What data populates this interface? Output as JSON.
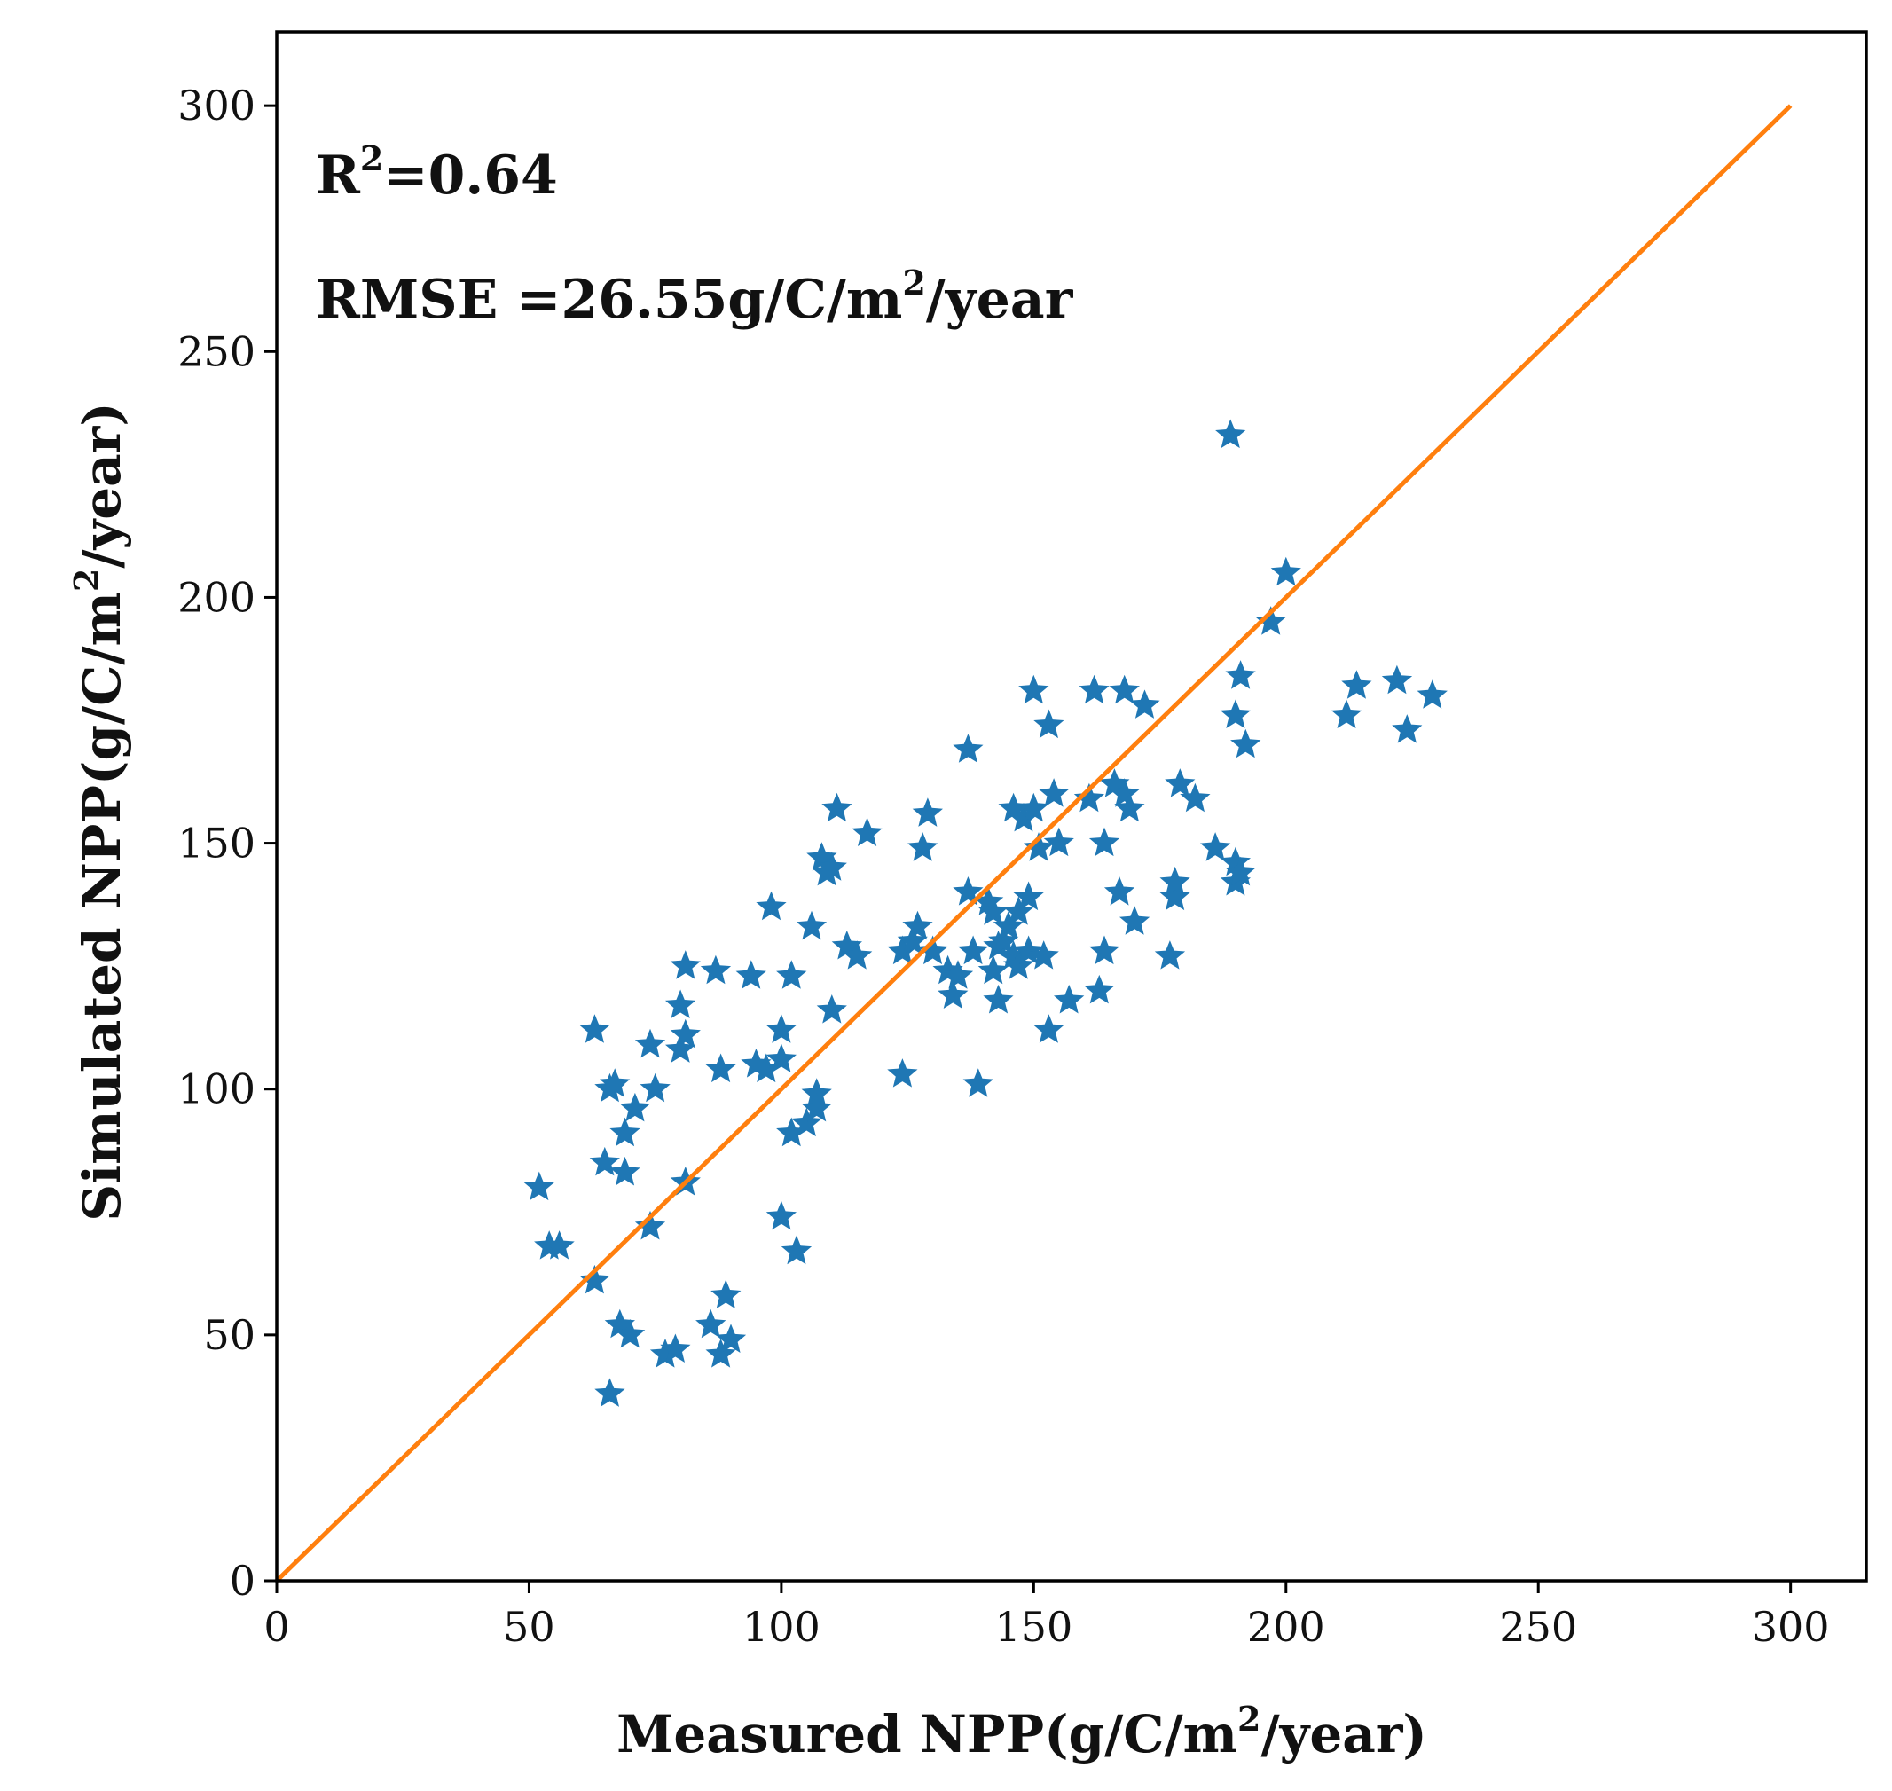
{
  "chart_data": {
    "type": "scatter",
    "title": "",
    "xlabel": {
      "pre": "Measured NPP(g/C/m",
      "sup": "2",
      "post": "/year)"
    },
    "ylabel": {
      "pre": "Simulated NPP(g/C/m",
      "sup": "2",
      "post": "/year)"
    },
    "xlim": [
      0,
      315
    ],
    "ylim": [
      0,
      315
    ],
    "xticks": [
      0,
      50,
      100,
      150,
      200,
      250,
      300
    ],
    "yticks": [
      0,
      50,
      100,
      150,
      200,
      250,
      300
    ],
    "xtick_labels": [
      "0",
      "50",
      "100",
      "150",
      "200",
      "250",
      "300"
    ],
    "ytick_labels": [
      "0",
      "50",
      "100",
      "150",
      "200",
      "250",
      "300"
    ],
    "grid": false,
    "annotations": {
      "r2": {
        "pre": "R",
        "sup": "2",
        "post": "=0.64"
      },
      "rmse": {
        "pre": "RMSE =26.55g/C/m",
        "sup": "2",
        "post": "/year"
      }
    },
    "colors": {
      "points": "#1f77b4",
      "line": "#ff7f0e",
      "axes": "#000000"
    },
    "marker": "star",
    "line": {
      "name": "1:1 line",
      "x": [
        0,
        300
      ],
      "y": [
        0,
        300
      ]
    },
    "points": [
      [
        52,
        80
      ],
      [
        54,
        68
      ],
      [
        56,
        68
      ],
      [
        63,
        112
      ],
      [
        63,
        61
      ],
      [
        65,
        85
      ],
      [
        66,
        100
      ],
      [
        66,
        38
      ],
      [
        67,
        101
      ],
      [
        68,
        52
      ],
      [
        69,
        91
      ],
      [
        69,
        83
      ],
      [
        70,
        50
      ],
      [
        71,
        96
      ],
      [
        74,
        109
      ],
      [
        74,
        72
      ],
      [
        75,
        100
      ],
      [
        77,
        46
      ],
      [
        79,
        47
      ],
      [
        80,
        108
      ],
      [
        80,
        117
      ],
      [
        81,
        125
      ],
      [
        81,
        111
      ],
      [
        81,
        81
      ],
      [
        86,
        52
      ],
      [
        87,
        124
      ],
      [
        88,
        104
      ],
      [
        88,
        46
      ],
      [
        89,
        58
      ],
      [
        90,
        49
      ],
      [
        94,
        123
      ],
      [
        95,
        105
      ],
      [
        97,
        104
      ],
      [
        98,
        137
      ],
      [
        100,
        112
      ],
      [
        100,
        106
      ],
      [
        100,
        74
      ],
      [
        102,
        123
      ],
      [
        102,
        91
      ],
      [
        103,
        67
      ],
      [
        105,
        93
      ],
      [
        106,
        133
      ],
      [
        107,
        99
      ],
      [
        107,
        96
      ],
      [
        108,
        147
      ],
      [
        109,
        144
      ],
      [
        110,
        116
      ],
      [
        110,
        145
      ],
      [
        111,
        157
      ],
      [
        113,
        129
      ],
      [
        115,
        127
      ],
      [
        117,
        152
      ],
      [
        124,
        103
      ],
      [
        124,
        128
      ],
      [
        126,
        130
      ],
      [
        127,
        133
      ],
      [
        128,
        149
      ],
      [
        129,
        156
      ],
      [
        130,
        128
      ],
      [
        133,
        124
      ],
      [
        134,
        119
      ],
      [
        135,
        123
      ],
      [
        137,
        140
      ],
      [
        137,
        169
      ],
      [
        138,
        128
      ],
      [
        139,
        101
      ],
      [
        141,
        138
      ],
      [
        142,
        136
      ],
      [
        142,
        124
      ],
      [
        143,
        129
      ],
      [
        143,
        118
      ],
      [
        144,
        130
      ],
      [
        145,
        133
      ],
      [
        146,
        157
      ],
      [
        146,
        127
      ],
      [
        147,
        125
      ],
      [
        147,
        136
      ],
      [
        148,
        155
      ],
      [
        149,
        139
      ],
      [
        149,
        128
      ],
      [
        150,
        157
      ],
      [
        150,
        181
      ],
      [
        151,
        149
      ],
      [
        152,
        127
      ],
      [
        153,
        174
      ],
      [
        153,
        112
      ],
      [
        154,
        160
      ],
      [
        155,
        150
      ],
      [
        157,
        118
      ],
      [
        161,
        159
      ],
      [
        162,
        181
      ],
      [
        163,
        120
      ],
      [
        164,
        150
      ],
      [
        164,
        128
      ],
      [
        166,
        162
      ],
      [
        167,
        140
      ],
      [
        168,
        181
      ],
      [
        168,
        160
      ],
      [
        169,
        157
      ],
      [
        170,
        134
      ],
      [
        172,
        178
      ],
      [
        177,
        127
      ],
      [
        178,
        139
      ],
      [
        178,
        142
      ],
      [
        179,
        162
      ],
      [
        182,
        159
      ],
      [
        186,
        149
      ],
      [
        189,
        233
      ],
      [
        190,
        176
      ],
      [
        190,
        142
      ],
      [
        190,
        146
      ],
      [
        191,
        184
      ],
      [
        191,
        144
      ],
      [
        192,
        170
      ],
      [
        197,
        195
      ],
      [
        200,
        205
      ],
      [
        212,
        176
      ],
      [
        214,
        182
      ],
      [
        222,
        183
      ],
      [
        224,
        173
      ],
      [
        229,
        180
      ]
    ]
  }
}
